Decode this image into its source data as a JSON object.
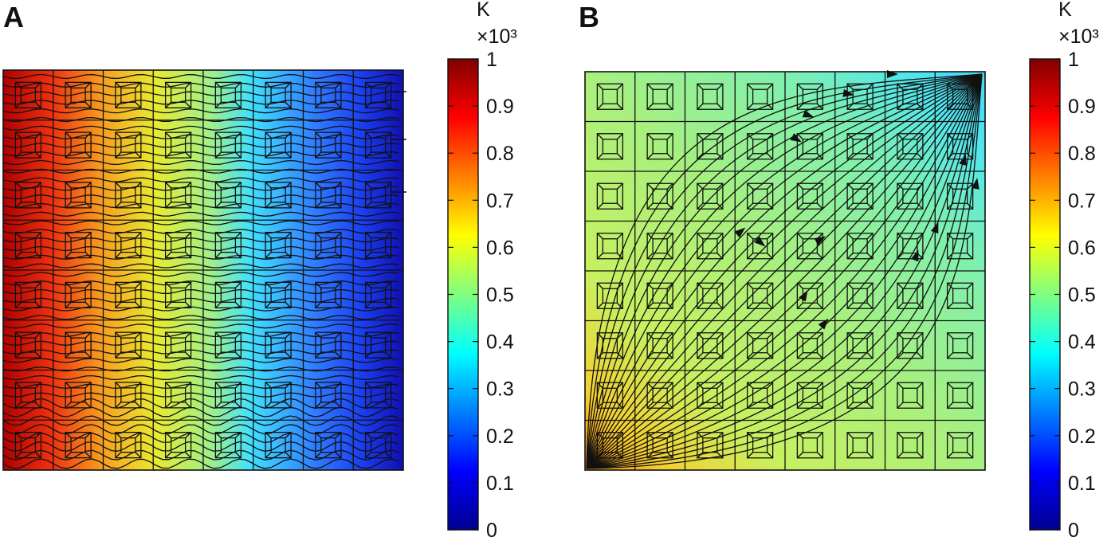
{
  "figure": {
    "panels": [
      {
        "letter": "A",
        "colorbar": {
          "unit_label": "K",
          "scale_label": "×10³",
          "ticks": [
            "1",
            "0.9",
            "0.8",
            "0.7",
            "0.6",
            "0.5",
            "0.4",
            "0.3",
            "0.2",
            "0.1",
            "0"
          ],
          "range": [
            0,
            1
          ]
        },
        "grid": {
          "cols": 8,
          "rows": 8
        },
        "field": "horizontal gradient, hot (1.0) at left edge to cold (~0.1) at right edge",
        "streamlines": "horizontal"
      },
      {
        "letter": "B",
        "colorbar": {
          "unit_label": "K",
          "scale_label": "×10³",
          "ticks": [
            "1",
            "0.9",
            "0.8",
            "0.7",
            "0.6",
            "0.5",
            "0.4",
            "0.3",
            "0.2",
            "0.1",
            "0"
          ],
          "range": [
            0,
            1
          ]
        },
        "grid": {
          "cols": 8,
          "rows": 8
        },
        "field": "diagonal, warm (~0.75) at bottom-left corner to cool (~0.35) at top-right corner",
        "streamlines": "fan from bottom-left corner converging to top-right corner"
      }
    ],
    "colormap": [
      "#00008f",
      "#0000ff",
      "#0080ff",
      "#00ffff",
      "#80ff80",
      "#ffff00",
      "#ff8000",
      "#ff0000",
      "#800000"
    ]
  }
}
